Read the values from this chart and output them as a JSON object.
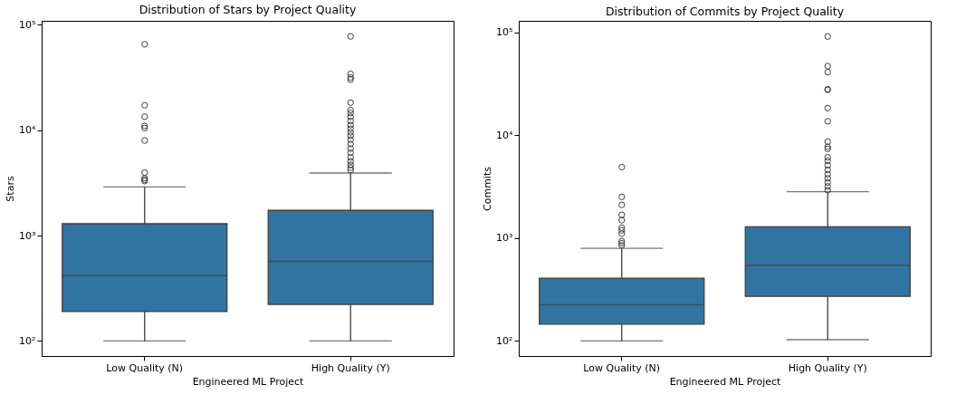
{
  "chart_data": [
    {
      "type": "box",
      "title": "Distribution of Stars by Project Quality",
      "xlabel": "Engineered ML Project",
      "ylabel": "Stars",
      "categories": [
        "Low Quality (N)",
        "High Quality (Y)"
      ],
      "color": "#3274a1",
      "log": true,
      "ylim": [
        72,
        109000
      ],
      "yticks": [
        {
          "value": 100,
          "label": "10²"
        },
        {
          "value": 1000,
          "label": "10³"
        },
        {
          "value": 10000,
          "label": "10⁴"
        },
        {
          "value": 100000,
          "label": "10⁵"
        }
      ],
      "boxes": [
        {
          "low": 100,
          "q1": 190,
          "median": 418,
          "q3": 1295,
          "high": 2890,
          "outliers": [
            3290,
            3390,
            3510,
            3960,
            7980,
            10480,
            10970,
            13450,
            17220,
            65300
          ]
        },
        {
          "low": 100,
          "q1": 222,
          "median": 570,
          "q3": 1733,
          "high": 3920,
          "outliers": [
            4180,
            4400,
            4690,
            5070,
            5520,
            6090,
            6700,
            7390,
            8130,
            8850,
            9550,
            10330,
            11200,
            12220,
            13370,
            14550,
            15520,
            18240,
            30200,
            31600,
            34200,
            77600
          ]
        }
      ]
    },
    {
      "type": "box",
      "title": "Distribution of Commits by Project Quality",
      "xlabel": "Engineered ML Project",
      "ylabel": "Commits",
      "categories": [
        "Low Quality (N)",
        "High Quality (Y)"
      ],
      "color": "#3274a1",
      "log": true,
      "ylim": [
        71.5,
        130000
      ],
      "yticks": [
        {
          "value": 100,
          "label": "10²"
        },
        {
          "value": 1000,
          "label": "10³"
        },
        {
          "value": 10000,
          "label": "10⁴"
        },
        {
          "value": 100000,
          "label": "10⁵"
        }
      ],
      "boxes": [
        {
          "low": 100,
          "q1": 146,
          "median": 225,
          "q3": 409,
          "high": 796,
          "outliers": [
            851,
            892,
            935,
            1107,
            1191,
            1265,
            1496,
            1688,
            2108,
            2525,
            4910
          ]
        },
        {
          "low": 103,
          "q1": 272,
          "median": 547,
          "q3": 1291,
          "high": 2830,
          "outliers": [
            2925,
            3190,
            3480,
            3827,
            4180,
            4620,
            5110,
            5650,
            6120,
            7390,
            7740,
            8690,
            13700,
            18400,
            27700,
            28100,
            41200,
            47100,
            91600
          ]
        }
      ]
    }
  ]
}
